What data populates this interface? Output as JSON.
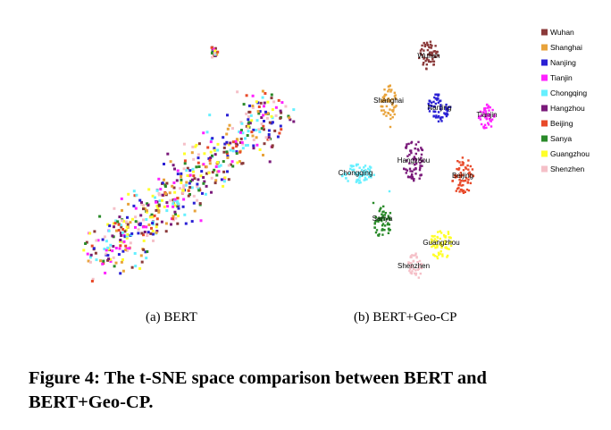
{
  "figure": {
    "caption_line1": "Figure 4: The t-SNE space comparison between BERT and",
    "caption_line2": "BERT+Geo-CP."
  },
  "chart_data": [
    {
      "type": "scatter",
      "subcaption": "(a)  BERT",
      "title": "",
      "xlabel": "",
      "ylabel": "",
      "grid": false,
      "legend": "none",
      "note": "",
      "series": []
    },
    {
      "type": "scatter",
      "subcaption": "(b)  BERT+Geo-CP",
      "title": "",
      "xlabel": "",
      "ylabel": "",
      "grid": false,
      "legend": "right",
      "series": [
        {
          "name": "Wuhan",
          "color": "#8b3a3a"
        },
        {
          "name": "Shanghai",
          "color": "#e8a33b"
        },
        {
          "name": "Nanjing",
          "color": "#2a20d4"
        },
        {
          "name": "Tianjin",
          "color": "#ff22ff"
        },
        {
          "name": "Chongqing",
          "color": "#66f0ff"
        },
        {
          "name": "Hangzhou",
          "color": "#7a1a7a"
        },
        {
          "name": "Beijing",
          "color": "#e84a2a"
        },
        {
          "name": "Sanya",
          "color": "#2a8a2a"
        },
        {
          "name": "Guangzhou",
          "color": "#ffff2a"
        },
        {
          "name": "Shenzhen",
          "color": "#f5c0c8"
        }
      ],
      "cluster_labels": [
        "Wuhan",
        "Shanghai",
        "Nanjing",
        "Tianjin",
        "Chongqing",
        "Hangzhou",
        "Beijing",
        "Sanya",
        "Guangzhou",
        "Shenzhen"
      ]
    }
  ]
}
